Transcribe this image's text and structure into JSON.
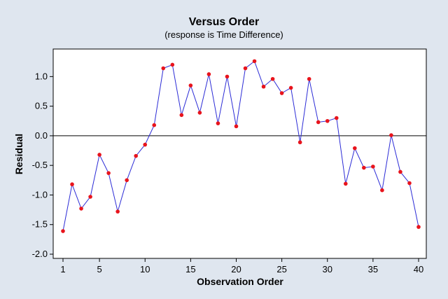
{
  "chart_data": {
    "type": "line",
    "title": "Versus Order",
    "subtitle": "(response is Time Difference)",
    "xlabel": "Observation Order",
    "ylabel": "Residual",
    "xlim": [
      1,
      40
    ],
    "ylim": [
      -2.0,
      1.3
    ],
    "xticks": [
      1,
      5,
      10,
      15,
      20,
      25,
      30,
      35,
      40
    ],
    "xtick_labels": [
      "1",
      "5",
      "10",
      "15",
      "20",
      "25",
      "30",
      "35",
      "40"
    ],
    "yticks": [
      1.0,
      0.5,
      0.0,
      -0.5,
      -1.0,
      -1.5,
      -2.0
    ],
    "ytick_labels": [
      "1.0",
      "0.5",
      "0.0",
      "-0.5",
      "-1.0",
      "-1.5",
      "-2.0"
    ],
    "reference_line_y": 0.0,
    "grid": false,
    "line_color": "#2b2bd6",
    "marker_color": "#e8141c",
    "x": [
      1,
      2,
      3,
      4,
      5,
      6,
      7,
      8,
      9,
      10,
      11,
      12,
      13,
      14,
      15,
      16,
      17,
      18,
      19,
      20,
      21,
      22,
      23,
      24,
      25,
      26,
      27,
      28,
      29,
      30,
      31,
      32,
      33,
      34,
      35,
      36,
      37,
      38,
      39,
      40
    ],
    "values": [
      -1.61,
      -0.82,
      -1.23,
      -1.03,
      -0.32,
      -0.63,
      -1.28,
      -0.75,
      -0.34,
      -0.15,
      0.18,
      1.14,
      1.2,
      0.35,
      0.85,
      0.39,
      1.04,
      0.21,
      1.0,
      0.16,
      1.14,
      1.26,
      0.83,
      0.96,
      0.72,
      0.81,
      -0.11,
      0.96,
      0.23,
      0.25,
      0.3,
      -0.81,
      -0.21,
      -0.54,
      -0.52,
      -0.92,
      0.01,
      -0.61,
      -0.8,
      -1.54
    ]
  }
}
